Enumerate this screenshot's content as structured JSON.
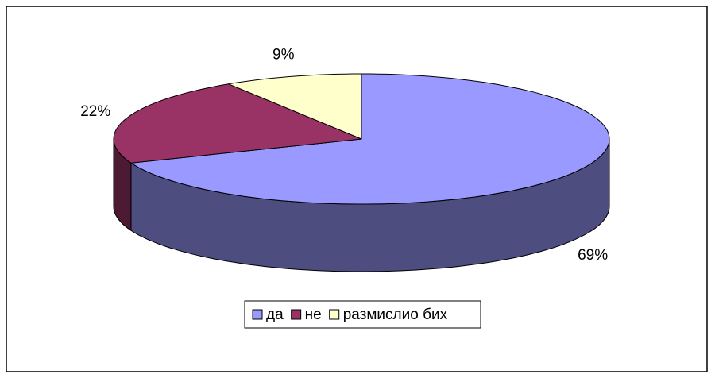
{
  "chart_data": {
    "type": "pie",
    "categories": [
      "да",
      "не",
      "размислио бих"
    ],
    "values": [
      69,
      22,
      9
    ],
    "value_labels": [
      "69%",
      "22%",
      "9%"
    ],
    "colors": [
      "#9999ff",
      "#993366",
      "#ffffcc"
    ],
    "legend": "bottom"
  }
}
